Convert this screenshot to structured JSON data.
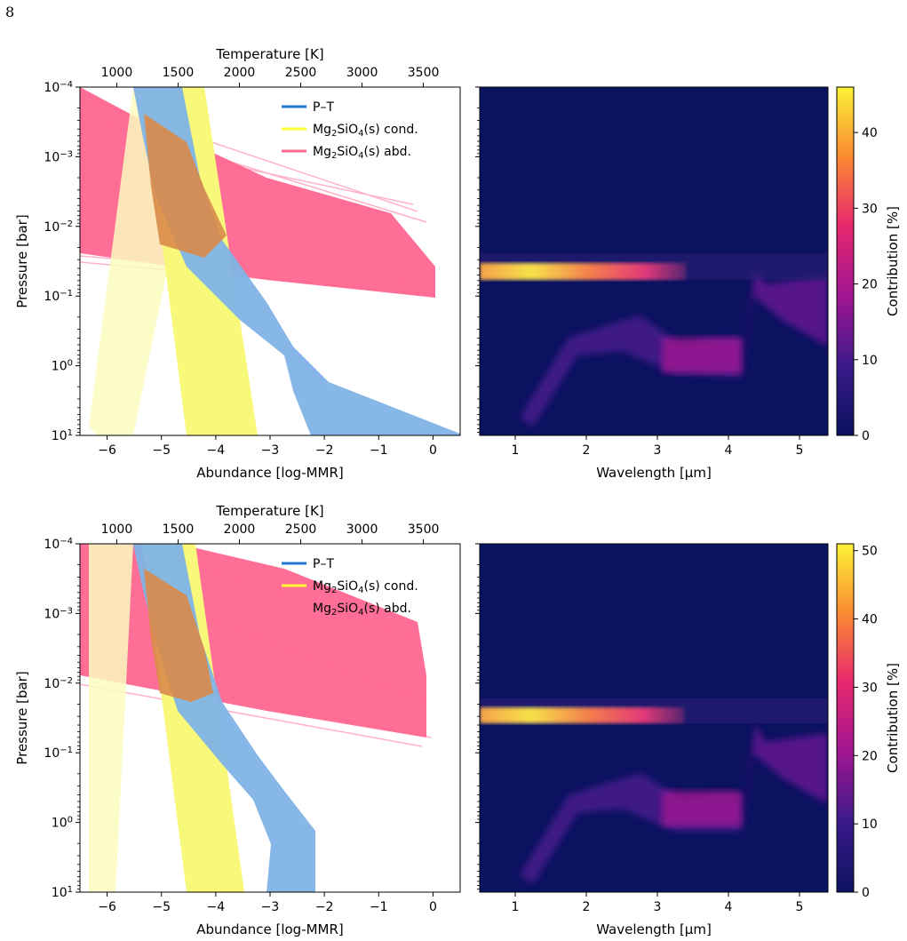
{
  "page": {
    "number": "8"
  },
  "colors": {
    "pt": "#1f77d4",
    "pt_band": "#7fb3e6",
    "cond": "#ffff33",
    "cond_band": "#f8f87a",
    "abd": "#ff6690",
    "overlap": "#d98a4a",
    "heat_bg": "#0b1260"
  },
  "chart_data": [
    {
      "type": "line",
      "panel": "top-left",
      "xlabel": "Abundance [log-MMR]",
      "x2label": "Temperature [K]",
      "ylabel": "Pressure [bar]",
      "yscale": "log",
      "ylim": [
        10,
        0.0001
      ],
      "xlim": [
        -6.5,
        0.5
      ],
      "x2lim": [
        700,
        3800
      ],
      "x_ticks": [
        "−6",
        "−5",
        "−4",
        "−3",
        "−2",
        "−1",
        "0"
      ],
      "x2_ticks": [
        "1000",
        "1500",
        "2000",
        "2500",
        "3000",
        "3500"
      ],
      "y_ticks": [
        "10^-4",
        "10^-3",
        "10^-2",
        "10^-1",
        "10^0",
        "10^1"
      ],
      "legend": {
        "position": "top-right",
        "entries": [
          "P–T",
          "Mg₂SiO₄(s) cond.",
          "Mg₂SiO₄(s) abd."
        ]
      },
      "series": [
        {
          "name": "P–T",
          "color": "pt",
          "x_temperature": [
            1150,
            1180,
            1210,
            1240,
            1300,
            1400,
            1580,
            2000,
            2450,
            2520,
            2950,
            3800
          ],
          "y_pressure": [
            0.0001,
            0.0004,
            0.001,
            0.003,
            0.01,
            0.03,
            0.05,
            0.3,
            1.2,
            2,
            7,
            10
          ]
        },
        {
          "name": "Mg₂SiO₄(s) cond.",
          "color": "cond",
          "x_abundance": [
            -5.0,
            -4.85,
            -4.7,
            -4.55,
            -4.4,
            -4.3
          ],
          "y_pressure": [
            0.0001,
            0.001,
            0.01,
            0.1,
            1,
            10
          ]
        },
        {
          "name": "Mg₂SiO₄(s) abd.",
          "color": "abd",
          "x_abundance": [
            -6.5,
            -3.5,
            -0.5,
            0
          ],
          "y_pressure": [
            0.0001,
            0.005,
            0.05,
            0.1
          ]
        }
      ]
    },
    {
      "type": "heatmap",
      "panel": "top-right",
      "xlabel": "Wavelength [µm]",
      "xlim": [
        0.5,
        5.4
      ],
      "x_ticks": [
        "1",
        "2",
        "3",
        "4",
        "5"
      ],
      "colorbar": {
        "label": "Contribution [%]",
        "range": [
          0,
          46
        ],
        "ticks": [
          "0",
          "10",
          "20",
          "30",
          "40"
        ]
      },
      "features": [
        {
          "x_from": 0.5,
          "x_to": 3.4,
          "pressure": 0.05,
          "peak": 45
        },
        {
          "x_from": 0.9,
          "x_to": 4.1,
          "pressure": 1.0,
          "peak": 14
        },
        {
          "x_from": 4.2,
          "x_to": 5.4,
          "pressure": 0.1,
          "peak": 18
        }
      ]
    },
    {
      "type": "line",
      "panel": "bottom-left",
      "xlabel": "Abundance [log-MMR]",
      "x2label": "Temperature [K]",
      "ylabel": "Pressure [bar]",
      "yscale": "log",
      "ylim": [
        10,
        0.0001
      ],
      "xlim": [
        -6.5,
        0.5
      ],
      "x2lim": [
        700,
        3800
      ],
      "x_ticks": [
        "−6",
        "−5",
        "−4",
        "−3",
        "−2",
        "−1",
        "0"
      ],
      "x2_ticks": [
        "1000",
        "1500",
        "2000",
        "2500",
        "3000",
        "3500"
      ],
      "y_ticks": [
        "10^-4",
        "10^-3",
        "10^-2",
        "10^-1",
        "10^0",
        "10^1"
      ],
      "legend": {
        "position": "top-right",
        "entries": [
          "P–T",
          "Mg₂SiO₄(s) cond.",
          "Mg₂SiO₄(s) abd."
        ]
      },
      "series": [
        {
          "name": "P–T",
          "color": "pt",
          "x_temperature": [
            1150,
            1180,
            1210,
            1240,
            1300,
            1400,
            1580,
            2000,
            2450,
            2600,
            2800,
            2950
          ],
          "y_pressure": [
            0.0001,
            0.0004,
            0.001,
            0.003,
            0.01,
            0.03,
            0.05,
            0.3,
            1.2,
            2,
            3,
            10
          ]
        },
        {
          "name": "Mg₂SiO₄(s) cond.",
          "color": "cond",
          "x_abundance": [
            -5.0,
            -4.85,
            -4.7,
            -4.55,
            -4.4,
            -4.3
          ],
          "y_pressure": [
            0.0001,
            0.001,
            0.01,
            0.1,
            1,
            10
          ]
        },
        {
          "name": "Mg₂SiO₄(s) abd.",
          "color": "abd",
          "x_abundance": [
            -6.5,
            -3.5,
            -0.5,
            0
          ],
          "y_pressure": [
            0.0001,
            0.001,
            0.01,
            0.05
          ]
        }
      ]
    },
    {
      "type": "heatmap",
      "panel": "bottom-right",
      "xlabel": "Wavelength [µm]",
      "xlim": [
        0.5,
        5.4
      ],
      "x_ticks": [
        "1",
        "2",
        "3",
        "4",
        "5"
      ],
      "colorbar": {
        "label": "Contribution [%]",
        "range": [
          0,
          51
        ],
        "ticks": [
          "0",
          "10",
          "20",
          "30",
          "40",
          "50"
        ]
      },
      "features": [
        {
          "x_from": 0.5,
          "x_to": 3.4,
          "pressure": 0.03,
          "peak": 50
        },
        {
          "x_from": 0.9,
          "x_to": 4.1,
          "pressure": 1.0,
          "peak": 14
        },
        {
          "x_from": 4.2,
          "x_to": 5.4,
          "pressure": 0.1,
          "peak": 18
        }
      ]
    }
  ]
}
